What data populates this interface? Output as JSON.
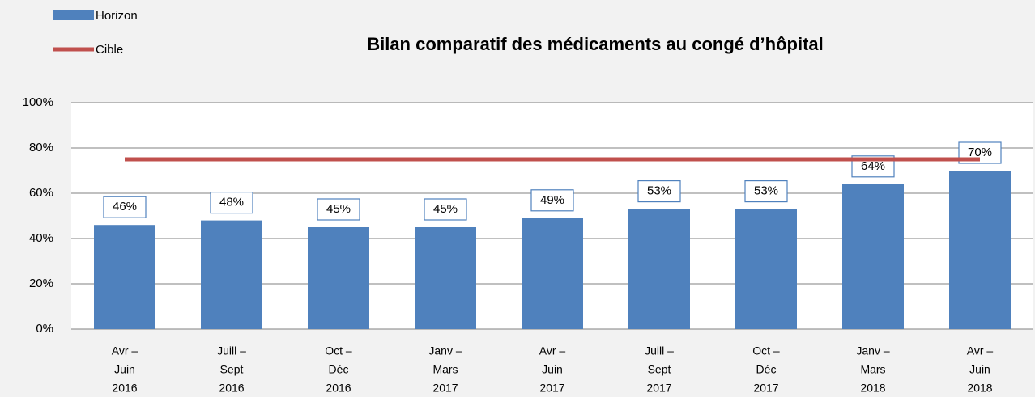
{
  "chart_data": {
    "type": "bar",
    "title": "Bilan comparatif des médicaments au congé d’hôpital",
    "categories": [
      [
        "Avr –",
        "Juin",
        "2016"
      ],
      [
        "Juill –",
        "Sept",
        "2016"
      ],
      [
        "Oct –",
        "Déc",
        "2016"
      ],
      [
        "Janv –",
        "Mars",
        "2017"
      ],
      [
        "Avr –",
        "Juin",
        "2017"
      ],
      [
        "Juill –",
        "Sept",
        "2017"
      ],
      [
        "Oct –",
        "Déc",
        "2017"
      ],
      [
        "Janv –",
        "Mars",
        "2018"
      ],
      [
        "Avr –",
        "Juin",
        "2018"
      ]
    ],
    "series": [
      {
        "name": "Horizon",
        "type": "bar",
        "color": "#4f81bd",
        "values": [
          46,
          48,
          45,
          45,
          49,
          53,
          53,
          64,
          70
        ],
        "value_labels": [
          "46%",
          "48%",
          "45%",
          "45%",
          "49%",
          "53%",
          "53%",
          "64%",
          "70%"
        ]
      },
      {
        "name": "Cible",
        "type": "line",
        "color": "#c0504d",
        "values": [
          75,
          75,
          75,
          75,
          75,
          75,
          75,
          75,
          75
        ]
      }
    ],
    "ylim": [
      0,
      100
    ],
    "yticks": [
      {
        "value": 0,
        "label": "0%"
      },
      {
        "value": 20,
        "label": "20%"
      },
      {
        "value": 40,
        "label": "40%"
      },
      {
        "value": 60,
        "label": "60%"
      },
      {
        "value": 80,
        "label": "80%"
      },
      {
        "value": 100,
        "label": "100%"
      }
    ],
    "grid": true,
    "legend": "top-left"
  }
}
